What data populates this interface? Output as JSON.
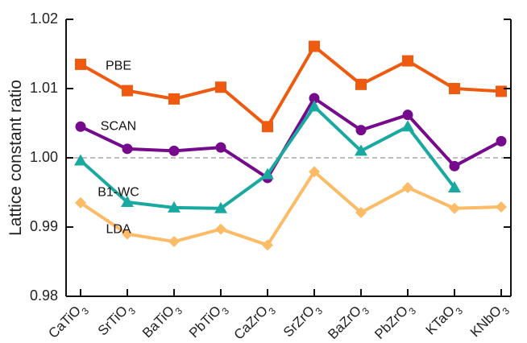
{
  "chart_data": {
    "type": "line",
    "title": "",
    "xlabel": "",
    "ylabel": "Lattice constant ratio",
    "ylim": [
      0.98,
      1.02
    ],
    "yticks": [
      "0.98",
      "0.99",
      "1.00",
      "1.01",
      "1.02"
    ],
    "reference_line": 1.0,
    "grid": false,
    "legend": "none (inline series labels)",
    "categories": [
      {
        "base": "CaTiO",
        "sub": "3"
      },
      {
        "base": "SrTiO",
        "sub": "3"
      },
      {
        "base": "BaTiO",
        "sub": "3"
      },
      {
        "base": "PbTiO",
        "sub": "3"
      },
      {
        "base": "CaZrO",
        "sub": "3"
      },
      {
        "base": "SrZrO",
        "sub": "3"
      },
      {
        "base": "BaZrO",
        "sub": "3"
      },
      {
        "base": "PbZrO",
        "sub": "3"
      },
      {
        "base": "KTaO",
        "sub": "3"
      },
      {
        "base": "KNbO",
        "sub": "3"
      }
    ],
    "series": [
      {
        "name": "PBE",
        "color": "#EE5A0F",
        "marker": "square",
        "label_pos": "above",
        "values": [
          1.0135,
          1.0097,
          1.0085,
          1.0102,
          1.0045,
          1.0161,
          1.0106,
          1.014,
          1.01,
          1.0096
        ]
      },
      {
        "name": "SCAN",
        "color": "#760A8C",
        "marker": "circle",
        "label_pos": "above",
        "values": [
          1.0045,
          1.0013,
          1.001,
          1.0015,
          0.9971,
          1.0086,
          1.004,
          1.0062,
          0.9988,
          1.0024
        ]
      },
      {
        "name": "B1-WC",
        "color": "#1AA9A0",
        "marker": "triangle",
        "label_pos": "below",
        "values": [
          0.9996,
          0.9936,
          0.9928,
          0.9927,
          0.9976,
          1.0074,
          1.001,
          1.0045,
          0.9957,
          null
        ]
      },
      {
        "name": "LDA",
        "color": "#FCBB66",
        "marker": "diamond",
        "label_pos": "below",
        "values": [
          0.9935,
          0.989,
          0.9879,
          0.9897,
          0.9874,
          0.998,
          0.9921,
          0.9957,
          0.9927,
          0.9929
        ]
      }
    ]
  }
}
